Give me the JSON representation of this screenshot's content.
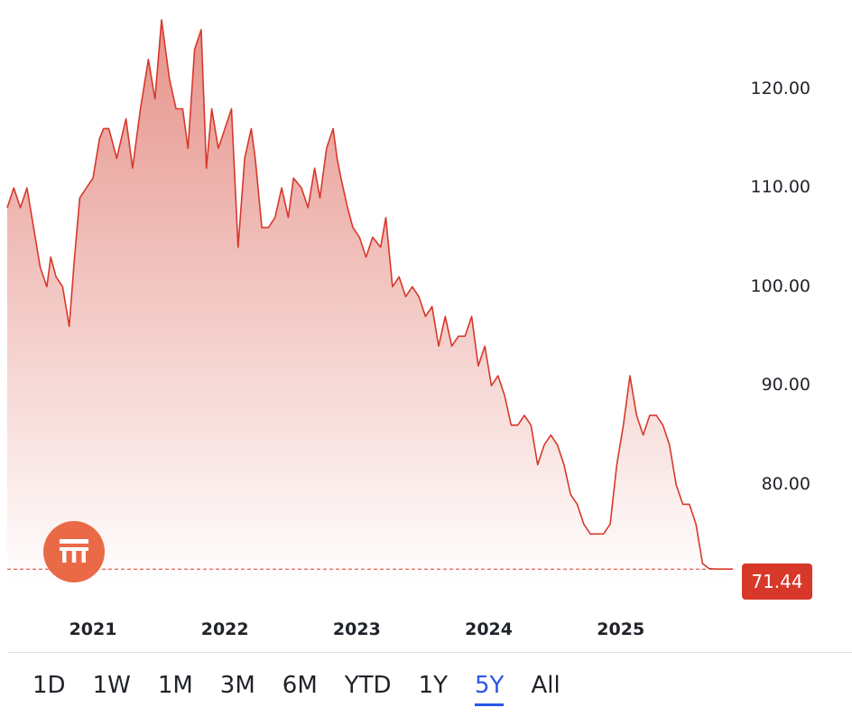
{
  "colors": {
    "line": "#d7382a",
    "fill_top": "#e6928a",
    "fill_bottom": "#ffffff",
    "badge": "#d7382a",
    "logo": "#ea6a47",
    "active_range": "#2a56e8"
  },
  "logo": {
    "icon": "bank-building-icon"
  },
  "last_price": {
    "label": "71.44",
    "value": 71.44
  },
  "ranges": {
    "selected": "5Y",
    "items": [
      "1D",
      "1W",
      "1M",
      "3M",
      "6M",
      "YTD",
      "1Y",
      "5Y",
      "All"
    ]
  },
  "chart_data": {
    "type": "area",
    "title": "",
    "xlabel": "",
    "ylabel": "",
    "ylim": [
      70,
      127
    ],
    "xlim": [
      2020.35,
      2025.85
    ],
    "grid": false,
    "y_axis_position": "right",
    "yticks": [
      {
        "value": 120,
        "label": "120.00"
      },
      {
        "value": 110,
        "label": "110.00"
      },
      {
        "value": 100,
        "label": "100.00"
      },
      {
        "value": 90,
        "label": "90.00"
      },
      {
        "value": 80,
        "label": "80.00"
      }
    ],
    "xticks": [
      {
        "value": 2021.0,
        "label": "2021"
      },
      {
        "value": 2022.0,
        "label": "2022"
      },
      {
        "value": 2023.0,
        "label": "2023"
      },
      {
        "value": 2024.0,
        "label": "2024"
      },
      {
        "value": 2025.0,
        "label": "2025"
      }
    ],
    "reference_line": {
      "value": 71.44,
      "style": "dashed"
    },
    "series": [
      {
        "x": [
          2020.35,
          2020.4,
          2020.45,
          2020.5,
          2020.55,
          2020.6,
          2020.65,
          2020.68,
          2020.72,
          2020.77,
          2020.82,
          2020.86,
          2020.9,
          2020.95,
          2021.0,
          2021.05,
          2021.08,
          2021.12,
          2021.18,
          2021.25,
          2021.3,
          2021.36,
          2021.42,
          2021.47,
          2021.52,
          2021.58,
          2021.63,
          2021.68,
          2021.72,
          2021.77,
          2021.82,
          2021.86,
          2021.9,
          2021.95,
          2022.0,
          2022.05,
          2022.1,
          2022.15,
          2022.2,
          2022.23,
          2022.28,
          2022.33,
          2022.38,
          2022.43,
          2022.48,
          2022.52,
          2022.58,
          2022.63,
          2022.68,
          2022.72,
          2022.77,
          2022.82,
          2022.85,
          2022.88,
          2022.93,
          2022.97,
          2023.02,
          2023.07,
          2023.12,
          2023.18,
          2023.22,
          2023.27,
          2023.32,
          2023.37,
          2023.42,
          2023.47,
          2023.52,
          2023.57,
          2023.62,
          2023.67,
          2023.72,
          2023.77,
          2023.82,
          2023.87,
          2023.92,
          2023.97,
          2024.02,
          2024.07,
          2024.12,
          2024.17,
          2024.22,
          2024.27,
          2024.32,
          2024.37,
          2024.42,
          2024.47,
          2024.52,
          2024.57,
          2024.62,
          2024.67,
          2024.72,
          2024.77,
          2024.82,
          2024.87,
          2024.92,
          2024.97,
          2025.02,
          2025.07,
          2025.12,
          2025.17,
          2025.22,
          2025.27,
          2025.32,
          2025.37,
          2025.42,
          2025.47,
          2025.52,
          2025.57,
          2025.62,
          2025.67,
          2025.72,
          2025.77,
          2025.8,
          2025.83,
          2025.85
        ],
        "y": [
          108,
          110,
          108,
          110,
          106,
          102,
          100,
          103,
          101,
          100,
          96,
          103,
          109,
          110,
          111,
          115,
          116,
          116,
          113,
          117,
          112,
          118,
          123,
          119,
          127,
          121,
          118,
          118,
          114,
          124,
          126,
          112,
          118,
          114,
          116,
          118,
          104,
          113,
          116,
          113,
          106,
          106,
          107,
          110,
          107,
          111,
          110,
          108,
          112,
          109,
          114,
          116,
          113,
          111,
          108,
          106,
          105,
          103,
          105,
          104,
          107,
          100,
          101,
          99,
          100,
          99,
          97,
          98,
          94,
          97,
          94,
          95,
          95,
          97,
          92,
          94,
          90,
          91,
          89,
          86,
          86,
          87,
          86,
          82,
          84,
          85,
          84,
          82,
          79,
          78,
          76,
          75,
          75,
          75,
          76,
          82,
          86,
          91,
          87,
          85,
          87,
          87,
          86,
          84,
          80,
          78,
          78,
          76,
          72,
          71.5,
          71.44,
          71.44,
          71.44,
          71.44,
          71.44
        ]
      }
    ]
  }
}
